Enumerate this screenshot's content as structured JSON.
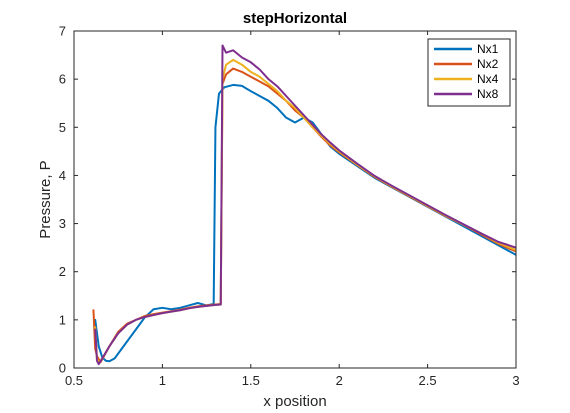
{
  "chart_data": {
    "type": "line",
    "title": "stepHorizontal",
    "xlabel": "x position",
    "ylabel": "Pressure, P",
    "xlim": [
      0.5,
      3
    ],
    "ylim": [
      0,
      7
    ],
    "xticks": [
      "0.5",
      "1",
      "1.5",
      "2",
      "2.5",
      "3"
    ],
    "yticks": [
      "0",
      "1",
      "2",
      "3",
      "4",
      "5",
      "6",
      "7"
    ],
    "grid": false,
    "legend_position": "top-right",
    "series": [
      {
        "name": "Nx1",
        "color": "#0072bd",
        "points": [
          [
            0.62,
            1.0
          ],
          [
            0.64,
            0.45
          ],
          [
            0.66,
            0.22
          ],
          [
            0.68,
            0.15
          ],
          [
            0.7,
            0.14
          ],
          [
            0.73,
            0.2
          ],
          [
            0.76,
            0.35
          ],
          [
            0.8,
            0.55
          ],
          [
            0.85,
            0.8
          ],
          [
            0.9,
            1.05
          ],
          [
            0.95,
            1.22
          ],
          [
            1.0,
            1.25
          ],
          [
            1.05,
            1.22
          ],
          [
            1.1,
            1.25
          ],
          [
            1.15,
            1.3
          ],
          [
            1.2,
            1.35
          ],
          [
            1.25,
            1.3
          ],
          [
            1.29,
            1.33
          ],
          [
            1.3,
            5.0
          ],
          [
            1.32,
            5.7
          ],
          [
            1.35,
            5.83
          ],
          [
            1.4,
            5.88
          ],
          [
            1.45,
            5.86
          ],
          [
            1.5,
            5.75
          ],
          [
            1.55,
            5.65
          ],
          [
            1.6,
            5.55
          ],
          [
            1.65,
            5.4
          ],
          [
            1.7,
            5.2
          ],
          [
            1.75,
            5.1
          ],
          [
            1.8,
            5.2
          ],
          [
            1.85,
            5.1
          ],
          [
            1.9,
            4.85
          ],
          [
            1.95,
            4.6
          ],
          [
            2.0,
            4.45
          ],
          [
            2.1,
            4.2
          ],
          [
            2.2,
            3.95
          ],
          [
            2.3,
            3.75
          ],
          [
            2.4,
            3.55
          ],
          [
            2.5,
            3.35
          ],
          [
            2.6,
            3.15
          ],
          [
            2.7,
            2.95
          ],
          [
            2.8,
            2.75
          ],
          [
            2.9,
            2.55
          ],
          [
            3.0,
            2.35
          ]
        ]
      },
      {
        "name": "Nx2",
        "color": "#d95319",
        "points": [
          [
            0.61,
            1.2
          ],
          [
            0.62,
            0.4
          ],
          [
            0.63,
            0.25
          ],
          [
            0.65,
            0.12
          ],
          [
            0.67,
            0.25
          ],
          [
            0.7,
            0.45
          ],
          [
            0.75,
            0.75
          ],
          [
            0.8,
            0.92
          ],
          [
            0.85,
            1.0
          ],
          [
            0.9,
            1.08
          ],
          [
            0.95,
            1.12
          ],
          [
            1.0,
            1.15
          ],
          [
            1.05,
            1.18
          ],
          [
            1.1,
            1.21
          ],
          [
            1.15,
            1.25
          ],
          [
            1.2,
            1.28
          ],
          [
            1.25,
            1.3
          ],
          [
            1.3,
            1.32
          ],
          [
            1.33,
            1.33
          ],
          [
            1.34,
            5.9
          ],
          [
            1.36,
            6.1
          ],
          [
            1.4,
            6.22
          ],
          [
            1.45,
            6.15
          ],
          [
            1.5,
            6.05
          ],
          [
            1.55,
            5.95
          ],
          [
            1.6,
            5.85
          ],
          [
            1.65,
            5.7
          ],
          [
            1.7,
            5.55
          ],
          [
            1.75,
            5.35
          ],
          [
            1.8,
            5.2
          ],
          [
            1.85,
            5.0
          ],
          [
            1.9,
            4.8
          ],
          [
            1.95,
            4.62
          ],
          [
            2.0,
            4.48
          ],
          [
            2.1,
            4.22
          ],
          [
            2.2,
            3.97
          ],
          [
            2.3,
            3.76
          ],
          [
            2.4,
            3.56
          ],
          [
            2.5,
            3.36
          ],
          [
            2.6,
            3.16
          ],
          [
            2.7,
            2.98
          ],
          [
            2.8,
            2.78
          ],
          [
            2.9,
            2.58
          ],
          [
            3.0,
            2.42
          ]
        ]
      },
      {
        "name": "Nx4",
        "color": "#edb120",
        "points": [
          [
            0.62,
            0.85
          ],
          [
            0.63,
            0.2
          ],
          [
            0.64,
            0.1
          ],
          [
            0.66,
            0.2
          ],
          [
            0.7,
            0.45
          ],
          [
            0.75,
            0.72
          ],
          [
            0.8,
            0.9
          ],
          [
            0.85,
            1.0
          ],
          [
            0.9,
            1.06
          ],
          [
            0.95,
            1.1
          ],
          [
            1.0,
            1.14
          ],
          [
            1.05,
            1.17
          ],
          [
            1.1,
            1.2
          ],
          [
            1.15,
            1.24
          ],
          [
            1.2,
            1.27
          ],
          [
            1.25,
            1.29
          ],
          [
            1.3,
            1.31
          ],
          [
            1.33,
            1.32
          ],
          [
            1.34,
            6.0
          ],
          [
            1.36,
            6.3
          ],
          [
            1.4,
            6.4
          ],
          [
            1.45,
            6.3
          ],
          [
            1.5,
            6.15
          ],
          [
            1.55,
            6.05
          ],
          [
            1.6,
            5.9
          ],
          [
            1.65,
            5.75
          ],
          [
            1.7,
            5.55
          ],
          [
            1.75,
            5.4
          ],
          [
            1.8,
            5.2
          ],
          [
            1.85,
            5.0
          ],
          [
            1.9,
            4.82
          ],
          [
            1.95,
            4.65
          ],
          [
            2.0,
            4.5
          ],
          [
            2.1,
            4.23
          ],
          [
            2.2,
            3.98
          ],
          [
            2.3,
            3.77
          ],
          [
            2.4,
            3.57
          ],
          [
            2.5,
            3.37
          ],
          [
            2.6,
            3.17
          ],
          [
            2.7,
            2.98
          ],
          [
            2.8,
            2.8
          ],
          [
            2.9,
            2.6
          ],
          [
            3.0,
            2.45
          ]
        ]
      },
      {
        "name": "Nx8",
        "color": "#7e2f8e",
        "points": [
          [
            0.62,
            0.8
          ],
          [
            0.63,
            0.15
          ],
          [
            0.64,
            0.08
          ],
          [
            0.66,
            0.2
          ],
          [
            0.7,
            0.45
          ],
          [
            0.75,
            0.72
          ],
          [
            0.8,
            0.9
          ],
          [
            0.85,
            1.0
          ],
          [
            0.9,
            1.06
          ],
          [
            0.95,
            1.1
          ],
          [
            1.0,
            1.14
          ],
          [
            1.05,
            1.17
          ],
          [
            1.1,
            1.2
          ],
          [
            1.15,
            1.24
          ],
          [
            1.2,
            1.27
          ],
          [
            1.25,
            1.29
          ],
          [
            1.3,
            1.31
          ],
          [
            1.33,
            1.32
          ],
          [
            1.34,
            6.7
          ],
          [
            1.36,
            6.55
          ],
          [
            1.4,
            6.6
          ],
          [
            1.45,
            6.45
          ],
          [
            1.5,
            6.35
          ],
          [
            1.55,
            6.2
          ],
          [
            1.6,
            6.0
          ],
          [
            1.65,
            5.85
          ],
          [
            1.7,
            5.65
          ],
          [
            1.75,
            5.45
          ],
          [
            1.8,
            5.25
          ],
          [
            1.85,
            5.05
          ],
          [
            1.9,
            4.85
          ],
          [
            1.95,
            4.68
          ],
          [
            2.0,
            4.52
          ],
          [
            2.1,
            4.25
          ],
          [
            2.2,
            3.99
          ],
          [
            2.3,
            3.78
          ],
          [
            2.4,
            3.58
          ],
          [
            2.5,
            3.38
          ],
          [
            2.6,
            3.18
          ],
          [
            2.7,
            2.99
          ],
          [
            2.8,
            2.8
          ],
          [
            2.9,
            2.62
          ],
          [
            3.0,
            2.5
          ]
        ]
      }
    ]
  }
}
